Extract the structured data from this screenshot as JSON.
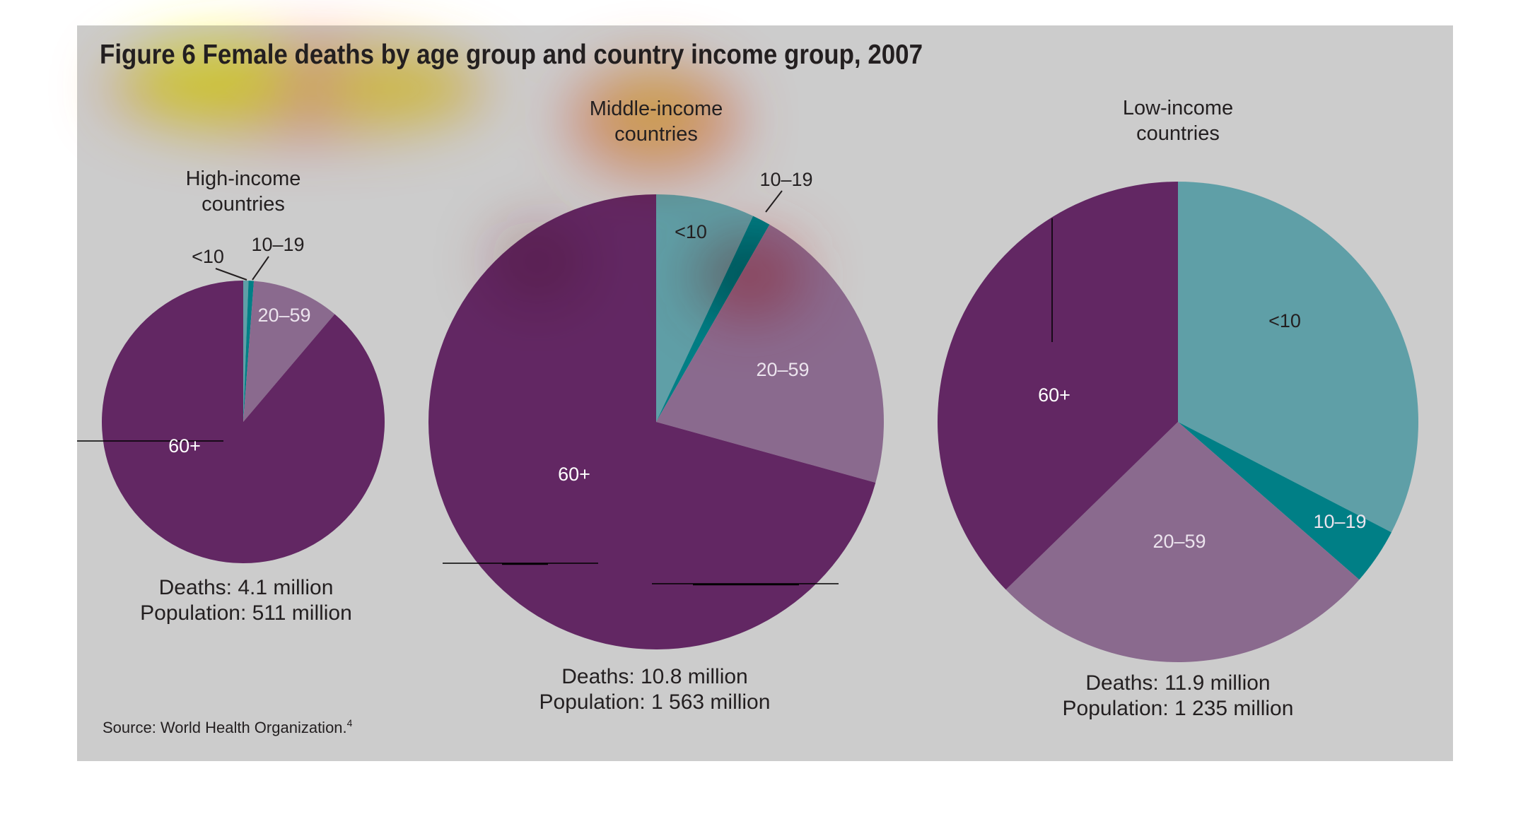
{
  "title": "Figure 6  Female deaths by age group and country income group, 2007",
  "source": "Source: World Health Organization.",
  "source_ref": "4",
  "colors": {
    "background": "#cccccc",
    "<10": "#5f9fa7",
    "10–19": "#007f86",
    "20–59": "#8a6a8e",
    "60+": "#622763"
  },
  "chart_data": [
    {
      "type": "pie",
      "title_line1": "High-income",
      "title_line2": "countries",
      "categories": [
        "<10",
        "10–19",
        "20–59",
        "60+"
      ],
      "values": [
        0.6,
        0.6,
        10.0,
        88.8
      ],
      "unit": "% of deaths (estimated from slice angles)",
      "deaths": "Deaths: 4.1 million",
      "population": "Population: 511 million"
    },
    {
      "type": "pie",
      "title_line1": "Middle-income",
      "title_line2": "countries",
      "categories": [
        "<10",
        "10–19",
        "20–59",
        "60+"
      ],
      "values": [
        7.0,
        1.3,
        21.0,
        70.7
      ],
      "unit": "% of deaths (estimated from slice angles)",
      "deaths": "Deaths: 10.8 million",
      "population": "Population: 1 563 million"
    },
    {
      "type": "pie",
      "title_line1": "Low-income",
      "title_line2": "countries",
      "categories": [
        "<10",
        "10–19",
        "20–59",
        "60+"
      ],
      "values": [
        32.6,
        3.8,
        26.3,
        37.3
      ],
      "unit": "% of deaths (estimated from slice angles)",
      "deaths": "Deaths: 11.9 million",
      "population": "Population: 1 235 million"
    }
  ]
}
